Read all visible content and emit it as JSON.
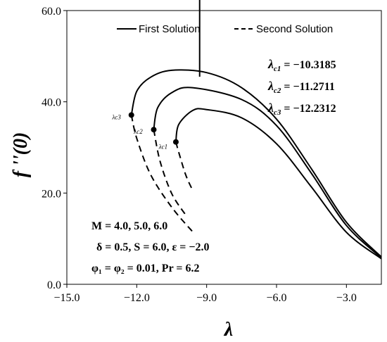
{
  "chart_data": {
    "type": "line",
    "title": "",
    "xlabel": "λ",
    "ylabel": "f ''(0)",
    "xlim": [
      -15.0,
      -1.5
    ],
    "ylim": [
      0.0,
      60.0
    ],
    "xticks": [
      -15.0,
      -12.0,
      -9.0,
      -6.0,
      -3.0
    ],
    "xtick_labels": [
      "−15.0",
      "−12.0",
      "−9.0",
      "−6.0",
      "−3.0"
    ],
    "yticks": [
      0.0,
      20.0,
      40.0,
      60.0
    ],
    "ytick_labels": [
      "0.0",
      "20.0",
      "40.0",
      "60.0"
    ],
    "legend": {
      "position": "top",
      "first": "First Solution",
      "second": "Second Solution"
    },
    "critical_values": [
      {
        "sym": "λ",
        "sub": "c1",
        "value": "= −10.3185"
      },
      {
        "sym": "λ",
        "sub": "c2",
        "value": "= −11.2711"
      },
      {
        "sym": "λ",
        "sub": "c3",
        "value": "= −12.2312"
      }
    ],
    "parameters": [
      "M = 4.0, 5.0, 6.0",
      "δ = 0.5, S = 6.0, ε = −2.0",
      "φ₁ = φ₂ = 0.01, Pr = 6.2"
    ],
    "arrow": {
      "x": -9.3,
      "y_from": 45.5,
      "y_to": 67.5
    },
    "series": [
      {
        "curve": 1,
        "point_label": "λc1",
        "critical": [
          -10.32,
          31.2
        ],
        "first": [
          [
            -10.32,
            31.2
          ],
          [
            -10.2,
            35.0
          ],
          [
            -9.6,
            38.1
          ],
          [
            -9.0,
            38.3
          ],
          [
            -7.5,
            36.5
          ],
          [
            -6.0,
            30.8
          ],
          [
            -4.5,
            21.3
          ],
          [
            -3.0,
            11.4
          ],
          [
            -1.5,
            5.6
          ]
        ],
        "second": [
          [
            -10.32,
            31.2
          ],
          [
            -10.2,
            29.0
          ],
          [
            -9.9,
            24.0
          ],
          [
            -9.6,
            20.6
          ]
        ]
      },
      {
        "curve": 2,
        "point_label": "λc2",
        "critical": [
          -11.27,
          33.9
        ],
        "first": [
          [
            -11.27,
            33.9
          ],
          [
            -11.1,
            38.7
          ],
          [
            -10.5,
            42.0
          ],
          [
            -9.6,
            43.1
          ],
          [
            -7.5,
            40.5
          ],
          [
            -6.0,
            34.8
          ],
          [
            -4.5,
            24.3
          ],
          [
            -3.0,
            12.9
          ],
          [
            -1.5,
            5.8
          ]
        ],
        "second": [
          [
            -11.27,
            33.9
          ],
          [
            -11.0,
            27.0
          ],
          [
            -10.5,
            19.9
          ],
          [
            -9.9,
            15.2
          ]
        ]
      },
      {
        "curve": 3,
        "point_label": "λc3",
        "critical": [
          -12.23,
          37.1
        ],
        "first": [
          [
            -12.23,
            37.1
          ],
          [
            -12.0,
            42.3
          ],
          [
            -11.4,
            45.4
          ],
          [
            -10.5,
            46.9
          ],
          [
            -9.0,
            46.4
          ],
          [
            -7.5,
            43.1
          ],
          [
            -6.0,
            36.2
          ],
          [
            -4.5,
            25.3
          ],
          [
            -3.0,
            13.6
          ],
          [
            -1.5,
            6.0
          ]
        ],
        "second": [
          [
            -12.23,
            37.1
          ],
          [
            -12.0,
            32.0
          ],
          [
            -11.4,
            24.0
          ],
          [
            -10.5,
            16.9
          ],
          [
            -9.6,
            11.5
          ]
        ]
      }
    ]
  },
  "colors": {
    "line": "#000000",
    "background": "#ffffff"
  }
}
